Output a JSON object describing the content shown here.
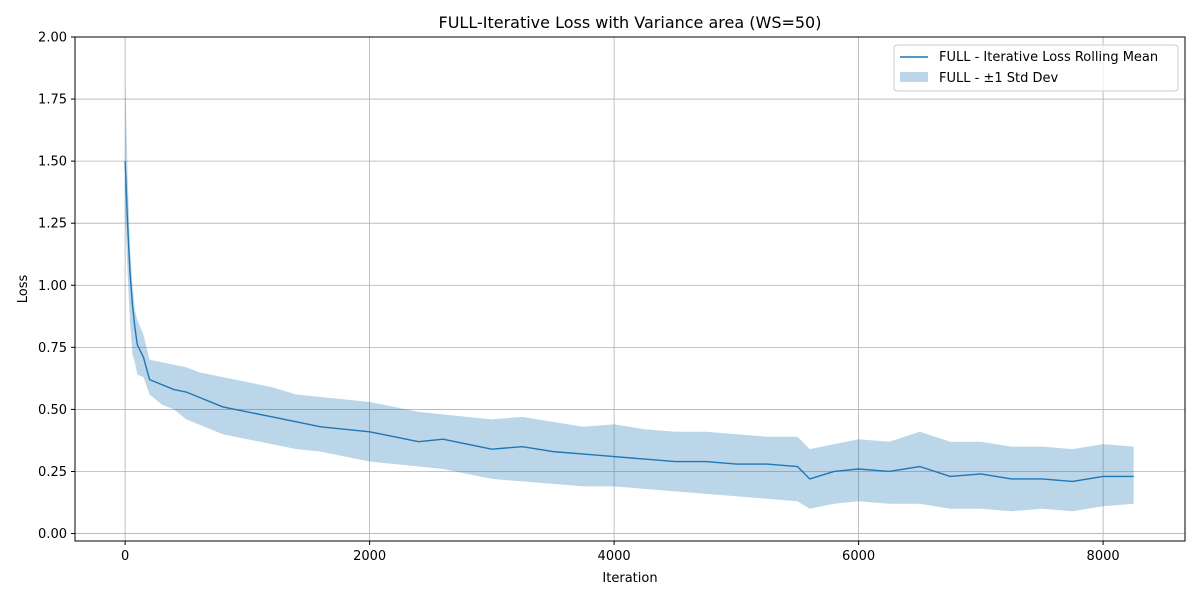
{
  "chart_data": {
    "type": "line",
    "title": "FULL-Iterative Loss with Variance area (WS=50)",
    "xlabel": "Iteration",
    "ylabel": "Loss",
    "xlim": [
      -410,
      8670
    ],
    "ylim": [
      -0.03,
      2.0
    ],
    "xticks": [
      0,
      2000,
      4000,
      6000,
      8000
    ],
    "xtick_labels": [
      "0",
      "2000",
      "4000",
      "6000",
      "8000"
    ],
    "yticks": [
      0.0,
      0.25,
      0.5,
      0.75,
      1.0,
      1.25,
      1.5,
      1.75,
      2.0
    ],
    "ytick_labels": [
      "0.00",
      "0.25",
      "0.50",
      "0.75",
      "1.00",
      "1.25",
      "1.50",
      "1.75",
      "2.00"
    ],
    "grid": true,
    "legend_position": "top-right",
    "colors": {
      "line": "#1f77b4",
      "band": "#1f77b4",
      "band_opacity": 0.3,
      "grid": "#b0b0b0"
    },
    "series": [
      {
        "name": "FULL - Iterative Loss Rolling Mean",
        "kind": "line",
        "x": [
          0,
          20,
          40,
          60,
          80,
          100,
          150,
          200,
          300,
          400,
          500,
          600,
          800,
          1000,
          1200,
          1400,
          1600,
          1800,
          2000,
          2200,
          2400,
          2600,
          2800,
          3000,
          3250,
          3500,
          3750,
          4000,
          4250,
          4500,
          4750,
          5000,
          5250,
          5500,
          5600,
          5800,
          6000,
          6250,
          6500,
          6750,
          7000,
          7250,
          7500,
          7750,
          8000,
          8250
        ],
        "y": [
          1.5,
          1.25,
          1.05,
          0.92,
          0.83,
          0.76,
          0.71,
          0.62,
          0.6,
          0.58,
          0.57,
          0.55,
          0.51,
          0.49,
          0.47,
          0.45,
          0.43,
          0.42,
          0.41,
          0.39,
          0.37,
          0.38,
          0.36,
          0.34,
          0.35,
          0.33,
          0.32,
          0.31,
          0.3,
          0.29,
          0.29,
          0.28,
          0.28,
          0.27,
          0.22,
          0.25,
          0.26,
          0.25,
          0.27,
          0.23,
          0.24,
          0.22,
          0.22,
          0.21,
          0.23,
          0.23
        ]
      },
      {
        "name": "FULL - ±1 Std Dev",
        "kind": "band",
        "x": [
          0,
          20,
          40,
          60,
          80,
          100,
          150,
          200,
          300,
          400,
          500,
          600,
          800,
          1000,
          1200,
          1400,
          1600,
          1800,
          2000,
          2200,
          2400,
          2600,
          2800,
          3000,
          3250,
          3500,
          3750,
          4000,
          4250,
          4500,
          4750,
          5000,
          5250,
          5500,
          5600,
          5800,
          6000,
          6250,
          6500,
          6750,
          7000,
          7250,
          7500,
          7750,
          8000,
          8250
        ],
        "upper": [
          1.86,
          1.45,
          1.15,
          1.0,
          0.9,
          0.86,
          0.8,
          0.7,
          0.69,
          0.68,
          0.67,
          0.65,
          0.63,
          0.61,
          0.59,
          0.56,
          0.55,
          0.54,
          0.53,
          0.51,
          0.49,
          0.48,
          0.47,
          0.46,
          0.47,
          0.45,
          0.43,
          0.44,
          0.42,
          0.41,
          0.41,
          0.4,
          0.39,
          0.39,
          0.34,
          0.36,
          0.38,
          0.37,
          0.41,
          0.37,
          0.37,
          0.35,
          0.35,
          0.34,
          0.36,
          0.35
        ],
        "lower": [
          1.3,
          1.05,
          0.85,
          0.72,
          0.69,
          0.64,
          0.63,
          0.56,
          0.52,
          0.5,
          0.46,
          0.44,
          0.4,
          0.38,
          0.36,
          0.34,
          0.33,
          0.31,
          0.29,
          0.28,
          0.27,
          0.26,
          0.24,
          0.22,
          0.21,
          0.2,
          0.19,
          0.19,
          0.18,
          0.17,
          0.16,
          0.15,
          0.14,
          0.13,
          0.1,
          0.12,
          0.13,
          0.12,
          0.12,
          0.1,
          0.1,
          0.09,
          0.1,
          0.09,
          0.11,
          0.12
        ]
      }
    ]
  }
}
